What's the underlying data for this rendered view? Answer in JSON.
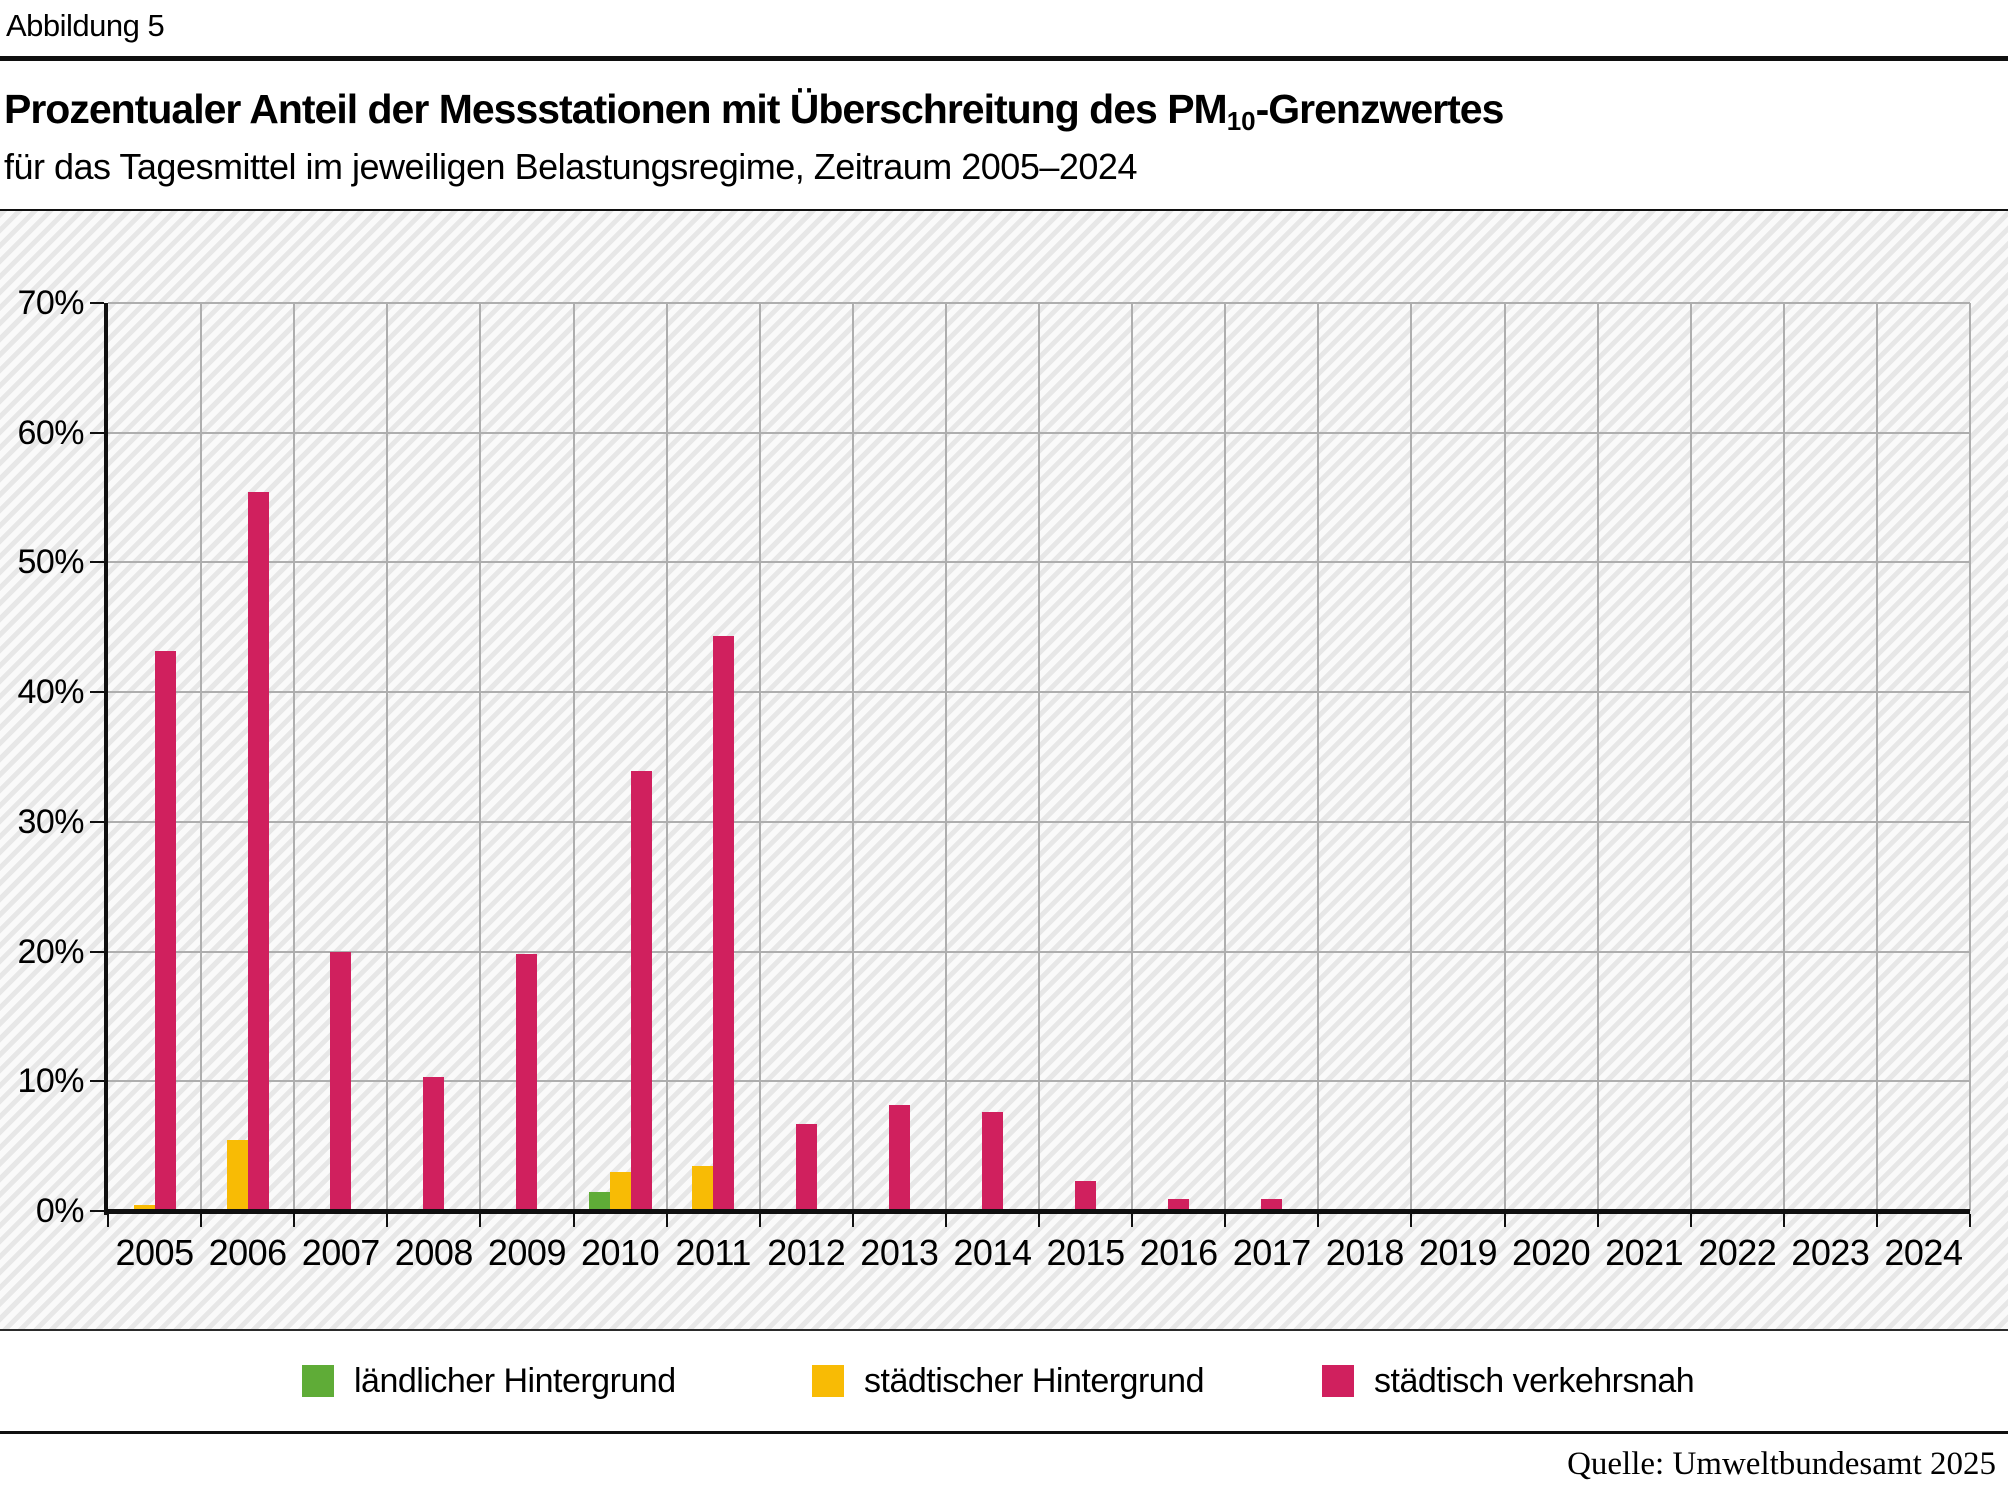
{
  "figure": {
    "label": "Abbildung 5",
    "title_prefix": "Prozentualer Anteil der Messstationen mit Überschreitung des PM",
    "title_subscript": "10",
    "title_suffix": "-Grenzwertes",
    "subtitle": "für das Tagesmittel im jeweiligen Belastungsregime, Zeitraum 2005–2024",
    "source": "Quelle: Umweltbundesamt 2025"
  },
  "colors": {
    "laendlicher_hintergrund": "#5fac37",
    "staedtischer_hintergrund": "#f8bb05",
    "staedtisch_verkehrsnah": "#d0205e",
    "gridline": "#aeaeae",
    "axis": "#101010",
    "hatch_stripe": "#e7e7e7",
    "hatch_background": "#fafafa"
  },
  "chart_data": {
    "type": "bar",
    "title": "Prozentualer Anteil der Messstationen mit Überschreitung des PM10-Grenzwertes",
    "subtitle": "für das Tagesmittel im jeweiligen Belastungsregime, Zeitraum 2005–2024",
    "categories": [
      "2005",
      "2006",
      "2007",
      "2008",
      "2009",
      "2010",
      "2011",
      "2012",
      "2013",
      "2014",
      "2015",
      "2016",
      "2017",
      "2018",
      "2019",
      "2020",
      "2021",
      "2022",
      "2023",
      "2024"
    ],
    "series": [
      {
        "name": "ländlicher Hintergrund",
        "color": "#5fac37",
        "values": [
          0,
          0,
          0,
          0,
          0,
          1.5,
          0,
          0,
          0,
          0,
          0,
          0,
          0,
          0,
          0,
          0,
          0,
          0,
          0,
          0
        ]
      },
      {
        "name": "städtischer Hintergrund",
        "color": "#f8bb05",
        "values": [
          0.5,
          5.5,
          0,
          0,
          0,
          3.0,
          3.5,
          0,
          0,
          0,
          0,
          0,
          0,
          0,
          0,
          0,
          0,
          0,
          0,
          0
        ]
      },
      {
        "name": "städtisch verkehrsnah",
        "color": "#d0205e",
        "values": [
          43.2,
          55.4,
          20.0,
          10.3,
          19.8,
          33.9,
          44.3,
          6.7,
          8.2,
          7.6,
          2.3,
          0.9,
          0.9,
          0,
          0,
          0,
          0,
          0,
          0,
          0
        ]
      }
    ],
    "xlabel": "",
    "ylabel": "",
    "ylim": [
      0,
      70
    ],
    "y_ticks": [
      "0%",
      "10%",
      "20%",
      "30%",
      "40%",
      "50%",
      "60%",
      "70%"
    ],
    "grid": true,
    "legend_position": "bottom"
  }
}
